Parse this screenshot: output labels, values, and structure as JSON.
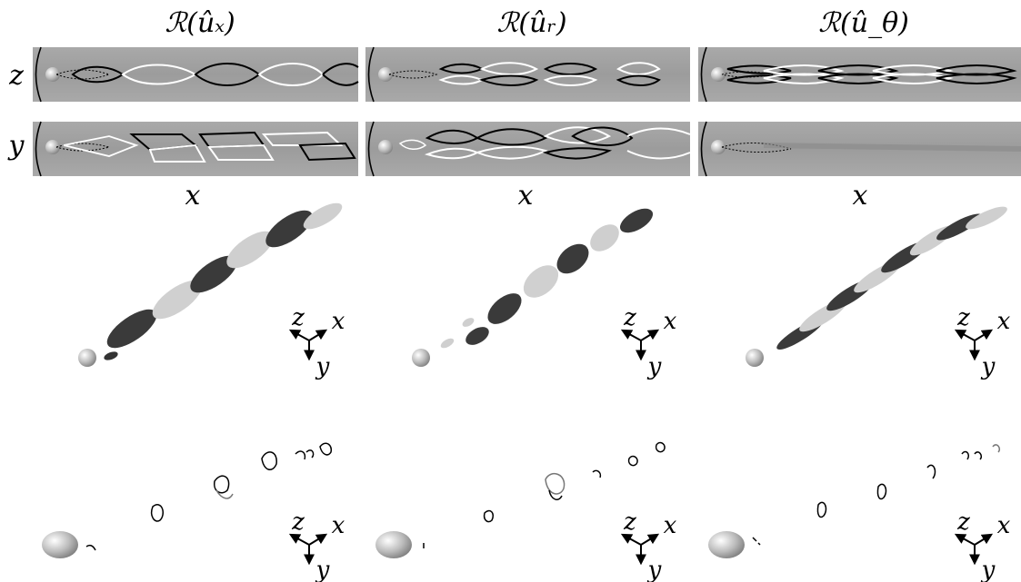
{
  "columns": [
    {
      "title": "ℛ(ûₓ)",
      "x_label": "x"
    },
    {
      "title": "ℛ(ûᵣ)",
      "x_label": "x"
    },
    {
      "title": "ℛ(û_θ)",
      "x_label": "x"
    }
  ],
  "row_labels": {
    "top": "z",
    "bottom": "y"
  },
  "axes_triad": {
    "z": "z",
    "x": "x",
    "y": "y"
  }
}
